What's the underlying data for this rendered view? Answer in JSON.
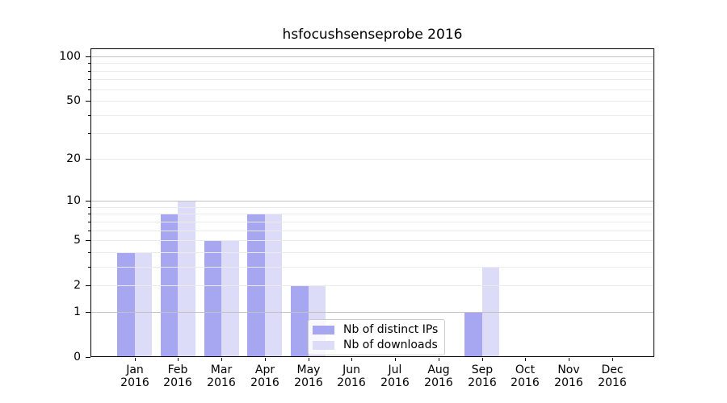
{
  "chart_data": {
    "type": "bar",
    "title": "hsfocushsenseprobe 2016",
    "categories": [
      "Jan 2016",
      "Feb 2016",
      "Mar 2016",
      "Apr 2016",
      "May 2016",
      "Jun 2016",
      "Jul 2016",
      "Aug 2016",
      "Sep 2016",
      "Oct 2016",
      "Nov 2016",
      "Dec 2016"
    ],
    "series": [
      {
        "name": "Nb of distinct IPs",
        "color": "#a6a6f1",
        "values": [
          4,
          8,
          5,
          8,
          2,
          0,
          0,
          0,
          1,
          0,
          0,
          0
        ]
      },
      {
        "name": "Nb of downloads",
        "color": "#dcdcf8",
        "values": [
          4,
          10,
          5,
          8,
          2,
          0,
          0,
          0,
          3,
          0,
          0,
          0
        ]
      }
    ],
    "xlabel": "",
    "ylabel": "",
    "yscale": "log10(1+y)",
    "ylim": [
      0,
      113
    ],
    "y_labeled_ticks": [
      0,
      1,
      2,
      5,
      10,
      20,
      50,
      100
    ],
    "y_major_gridlines": [
      1,
      10,
      100
    ],
    "y_minor_gridlines": [
      2,
      3,
      4,
      5,
      6,
      7,
      8,
      9,
      20,
      30,
      40,
      50,
      60,
      70,
      80,
      90
    ],
    "grid": true,
    "legend_position": "lower center",
    "colors": {
      "grid_major": "#c2c2c2",
      "grid_minor": "#ebebeb",
      "axis": "#000000",
      "background": "#ffffff"
    }
  }
}
